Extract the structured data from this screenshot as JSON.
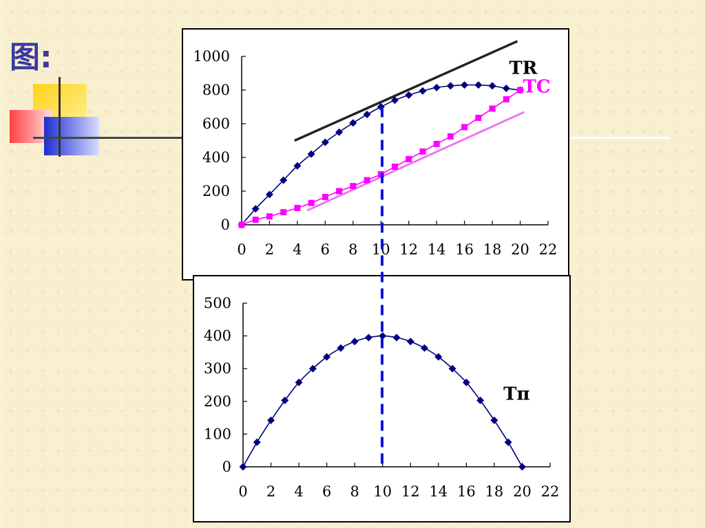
{
  "slide": {
    "title": "图:"
  },
  "colors": {
    "tr": "#000080",
    "tc": "#ff00ff",
    "tr_tangent": "#222222",
    "tc_tangent": "#ee77ee",
    "guide": "#1010dd"
  },
  "chart_data": [
    {
      "type": "line",
      "x": [
        0,
        1,
        2,
        3,
        4,
        5,
        6,
        7,
        8,
        9,
        10,
        11,
        12,
        13,
        14,
        15,
        16,
        17,
        18,
        19,
        20
      ],
      "series": [
        {
          "name": "TR",
          "values": [
            0,
            95,
            180,
            265,
            350,
            420,
            490,
            550,
            605,
            655,
            700,
            740,
            770,
            795,
            815,
            825,
            830,
            830,
            825,
            810,
            800
          ]
        },
        {
          "name": "TC",
          "values": [
            0,
            30,
            50,
            75,
            100,
            130,
            165,
            200,
            230,
            265,
            300,
            345,
            390,
            435,
            480,
            525,
            580,
            635,
            690,
            745,
            800
          ]
        }
      ],
      "annotations": [
        "TR",
        "TC"
      ],
      "xlim": [
        0,
        22
      ],
      "ylim": [
        0,
        1000
      ],
      "xticks": [
        0,
        2,
        4,
        6,
        8,
        10,
        12,
        14,
        16,
        18,
        20,
        22
      ],
      "yticks": [
        0,
        200,
        400,
        600,
        800,
        1000
      ],
      "grid": false
    },
    {
      "type": "line",
      "x": [
        0,
        1,
        2,
        3,
        4,
        5,
        6,
        7,
        8,
        9,
        10,
        11,
        12,
        13,
        14,
        15,
        16,
        17,
        18,
        19,
        20
      ],
      "series": [
        {
          "name": "Tπ",
          "values": [
            0,
            75,
            142,
            203,
            258,
            300,
            336,
            363,
            383,
            395,
            400,
            395,
            383,
            363,
            336,
            300,
            258,
            203,
            142,
            75,
            0
          ]
        }
      ],
      "annotations": [
        "Tπ"
      ],
      "xlim": [
        0,
        22
      ],
      "ylim": [
        0,
        500
      ],
      "xticks": [
        0,
        2,
        4,
        6,
        8,
        10,
        12,
        14,
        16,
        18,
        20,
        22
      ],
      "yticks": [
        0,
        100,
        200,
        300,
        400,
        500
      ],
      "grid": false
    }
  ]
}
